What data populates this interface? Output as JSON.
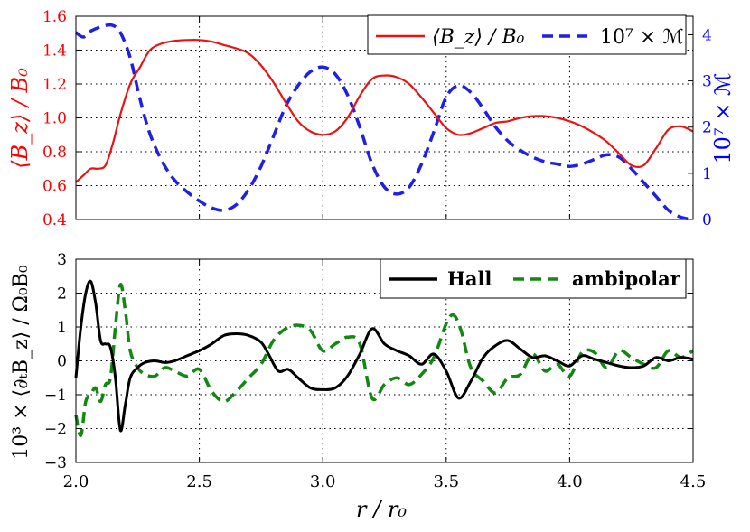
{
  "chart_data": [
    {
      "type": "line",
      "panel": "top",
      "xlim": [
        2.0,
        4.5
      ],
      "xticks": [
        "2.0",
        "2.5",
        "3.0",
        "3.5",
        "4.0",
        "4.5"
      ],
      "grid": true,
      "legend_position": "top-right",
      "ylabel_left": "⟨B_z⟩ / B₀",
      "ylabel_right": "10⁷ × ℳ",
      "ylim_left": [
        0.4,
        1.6
      ],
      "yticks_left": [
        "0.4",
        "0.6",
        "0.8",
        "1.0",
        "1.2",
        "1.4",
        "1.6"
      ],
      "ylim_right": [
        0,
        4.4
      ],
      "yticks_right": [
        "0",
        "1",
        "2",
        "3",
        "4"
      ],
      "colors": {
        "left_axis": "#ff0000",
        "right_axis": "#0000ff"
      },
      "series": [
        {
          "name": "⟨B_z⟩ / B₀",
          "axis": "left",
          "color": "#ee1111",
          "style": "solid",
          "x": [
            2.0,
            2.03,
            2.06,
            2.09,
            2.12,
            2.15,
            2.18,
            2.22,
            2.26,
            2.3,
            2.35,
            2.4,
            2.45,
            2.5,
            2.55,
            2.6,
            2.65,
            2.7,
            2.75,
            2.8,
            2.85,
            2.9,
            2.95,
            3.0,
            3.05,
            3.1,
            3.15,
            3.2,
            3.25,
            3.3,
            3.35,
            3.4,
            3.45,
            3.5,
            3.55,
            3.6,
            3.65,
            3.7,
            3.75,
            3.8,
            3.85,
            3.9,
            3.95,
            4.0,
            4.05,
            4.1,
            4.15,
            4.2,
            4.25,
            4.3,
            4.35,
            4.4,
            4.45,
            4.5
          ],
          "values": [
            0.62,
            0.66,
            0.7,
            0.7,
            0.72,
            0.85,
            1.02,
            1.2,
            1.3,
            1.4,
            1.44,
            1.455,
            1.46,
            1.46,
            1.45,
            1.43,
            1.41,
            1.38,
            1.31,
            1.21,
            1.09,
            0.98,
            0.92,
            0.9,
            0.92,
            1.0,
            1.13,
            1.23,
            1.25,
            1.24,
            1.2,
            1.12,
            1.03,
            0.94,
            0.9,
            0.91,
            0.94,
            0.97,
            0.98,
            1.0,
            1.01,
            1.01,
            1.0,
            0.98,
            0.95,
            0.91,
            0.86,
            0.79,
            0.72,
            0.72,
            0.82,
            0.93,
            0.95,
            0.92
          ]
        },
        {
          "name": "10⁷ × ℳ",
          "axis": "right",
          "color": "#1f1fe6",
          "style": "dashed",
          "x": [
            2.0,
            2.03,
            2.06,
            2.09,
            2.12,
            2.15,
            2.18,
            2.22,
            2.26,
            2.3,
            2.35,
            2.4,
            2.45,
            2.5,
            2.55,
            2.6,
            2.65,
            2.7,
            2.75,
            2.8,
            2.85,
            2.9,
            2.95,
            3.0,
            3.05,
            3.1,
            3.15,
            3.2,
            3.25,
            3.3,
            3.35,
            3.4,
            3.45,
            3.5,
            3.55,
            3.6,
            3.65,
            3.7,
            3.75,
            3.8,
            3.85,
            3.9,
            3.95,
            4.0,
            4.05,
            4.1,
            4.15,
            4.2,
            4.25,
            4.3,
            4.35,
            4.4,
            4.45,
            4.5
          ],
          "values": [
            4.05,
            3.95,
            4.08,
            4.15,
            4.2,
            4.2,
            4.05,
            3.5,
            2.6,
            1.85,
            1.25,
            0.85,
            0.6,
            0.4,
            0.25,
            0.2,
            0.32,
            0.65,
            1.15,
            1.8,
            2.45,
            2.9,
            3.2,
            3.3,
            3.15,
            2.7,
            2.0,
            1.2,
            0.7,
            0.55,
            0.7,
            1.2,
            1.9,
            2.65,
            2.9,
            2.75,
            2.4,
            2.0,
            1.7,
            1.5,
            1.35,
            1.25,
            1.2,
            1.15,
            1.2,
            1.3,
            1.4,
            1.35,
            1.1,
            0.8,
            0.5,
            0.2,
            0.05,
            0.0
          ]
        }
      ]
    },
    {
      "type": "line",
      "panel": "bottom",
      "xlim": [
        2.0,
        4.5
      ],
      "xticks": [
        "2.0",
        "2.5",
        "3.0",
        "3.5",
        "4.0",
        "4.5"
      ],
      "xlabel": "r / r₀",
      "ylabel": "10³ × ⟨∂ₜB_z⟩ / Ω₀B₀",
      "ylim": [
        -3,
        3
      ],
      "yticks": [
        "−3",
        "−2",
        "−1",
        "0",
        "1",
        "2",
        "3"
      ],
      "grid": true,
      "legend_position": "top-right",
      "series": [
        {
          "name": "Hall",
          "color": "#000000",
          "style": "solid",
          "x": [
            2.0,
            2.02,
            2.04,
            2.06,
            2.08,
            2.1,
            2.12,
            2.14,
            2.16,
            2.18,
            2.2,
            2.22,
            2.25,
            2.28,
            2.32,
            2.36,
            2.4,
            2.45,
            2.5,
            2.55,
            2.6,
            2.65,
            2.7,
            2.75,
            2.78,
            2.82,
            2.86,
            2.9,
            2.95,
            3.0,
            3.05,
            3.1,
            3.15,
            3.2,
            3.25,
            3.3,
            3.35,
            3.4,
            3.45,
            3.5,
            3.55,
            3.6,
            3.65,
            3.7,
            3.75,
            3.8,
            3.85,
            3.9,
            3.95,
            4.0,
            4.05,
            4.1,
            4.15,
            4.2,
            4.25,
            4.3,
            4.35,
            4.4,
            4.45,
            4.5
          ],
          "values": [
            -0.5,
            1.0,
            2.0,
            2.35,
            1.7,
            0.6,
            0.5,
            0.4,
            -0.5,
            -2.05,
            -1.3,
            -0.5,
            -0.2,
            -0.05,
            0.0,
            -0.05,
            0.0,
            0.15,
            0.3,
            0.5,
            0.75,
            0.8,
            0.75,
            0.55,
            0.2,
            -0.3,
            -0.25,
            -0.5,
            -0.8,
            -0.85,
            -0.8,
            -0.45,
            0.2,
            0.95,
            0.5,
            0.3,
            0.15,
            -0.1,
            0.2,
            -0.3,
            -1.1,
            -0.6,
            0.1,
            0.45,
            0.6,
            0.35,
            0.1,
            0.15,
            0.0,
            -0.15,
            0.15,
            0.05,
            -0.05,
            -0.15,
            -0.2,
            -0.15,
            0.1,
            0.0,
            0.1,
            0.05
          ]
        },
        {
          "name": "ambipolar",
          "color": "#118811",
          "style": "dashed",
          "x": [
            2.0,
            2.02,
            2.04,
            2.06,
            2.08,
            2.1,
            2.12,
            2.14,
            2.16,
            2.18,
            2.2,
            2.22,
            2.25,
            2.28,
            2.32,
            2.36,
            2.4,
            2.45,
            2.5,
            2.55,
            2.6,
            2.65,
            2.7,
            2.75,
            2.8,
            2.85,
            2.9,
            2.95,
            3.0,
            3.05,
            3.1,
            3.15,
            3.2,
            3.25,
            3.3,
            3.35,
            3.4,
            3.45,
            3.5,
            3.53,
            3.56,
            3.6,
            3.65,
            3.7,
            3.75,
            3.8,
            3.85,
            3.9,
            3.95,
            4.0,
            4.05,
            4.1,
            4.15,
            4.2,
            4.25,
            4.3,
            4.35,
            4.4,
            4.45,
            4.5
          ],
          "values": [
            -1.6,
            -2.2,
            -1.2,
            -1.0,
            -0.8,
            -1.2,
            -0.7,
            -0.5,
            1.0,
            2.25,
            1.5,
            0.3,
            -0.2,
            -0.4,
            -0.45,
            -0.2,
            -0.3,
            -0.45,
            -0.25,
            -0.9,
            -1.2,
            -0.9,
            -0.5,
            -0.1,
            0.6,
            0.95,
            1.05,
            0.9,
            0.3,
            0.5,
            0.7,
            0.5,
            -1.1,
            -0.7,
            -0.5,
            -0.7,
            -0.4,
            0.1,
            1.1,
            1.35,
            0.9,
            -0.2,
            -0.6,
            -0.95,
            -0.5,
            -0.4,
            0.2,
            -0.3,
            -0.1,
            -0.45,
            0.25,
            0.25,
            -0.2,
            0.3,
            0.1,
            -0.1,
            -0.2,
            0.3,
            0.1,
            0.3
          ]
        }
      ]
    }
  ]
}
